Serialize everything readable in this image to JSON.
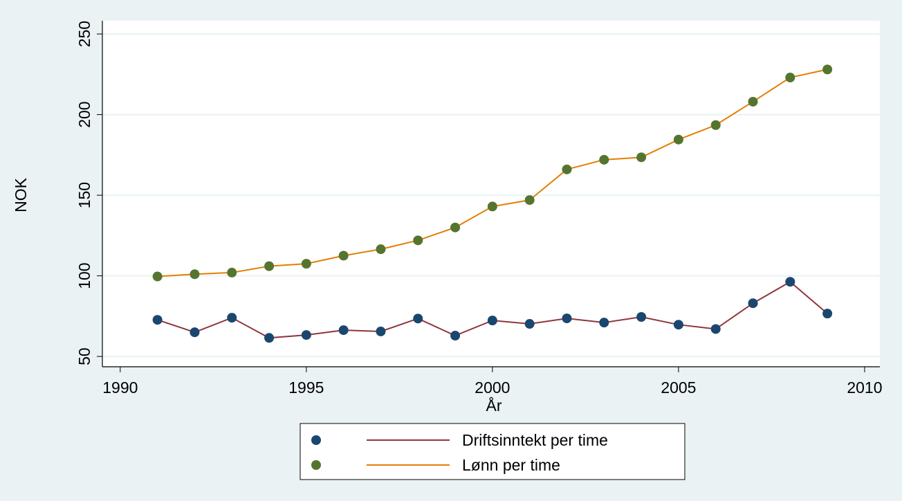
{
  "chart_data": {
    "type": "line",
    "x_label": "År",
    "y_label": "NOK",
    "x": [
      1991,
      1992,
      1993,
      1994,
      1995,
      1996,
      1997,
      1998,
      1999,
      2000,
      2001,
      2002,
      2003,
      2004,
      2005,
      2006,
      2007,
      2008,
      2009
    ],
    "series": [
      {
        "name": "Driftsinntekt per time",
        "color": "#90353b",
        "marker_color": "#1a476f",
        "values": [
          72.7,
          65,
          74,
          61.5,
          63.3,
          66.3,
          65.5,
          73.5,
          62.9,
          72.3,
          70.2,
          73.6,
          71,
          74.5,
          69.7,
          67,
          83,
          96.3,
          76.6
        ]
      },
      {
        "name": "Lønn per time",
        "color": "#e37e00",
        "marker_color": "#55752f",
        "values": [
          99.6,
          101,
          102,
          106,
          107.5,
          112.5,
          116.5,
          122,
          130,
          143,
          147,
          166,
          172,
          173.5,
          184.5,
          193.5,
          208,
          223,
          228
        ]
      }
    ],
    "xlim": [
      1989.52,
      2010.41
    ],
    "xticks": [
      1990,
      1995,
      2000,
      2005,
      2010
    ],
    "ylim": [
      43.6,
      258.2
    ],
    "yticks": [
      50,
      100,
      150,
      200,
      250
    ],
    "grid": true
  }
}
